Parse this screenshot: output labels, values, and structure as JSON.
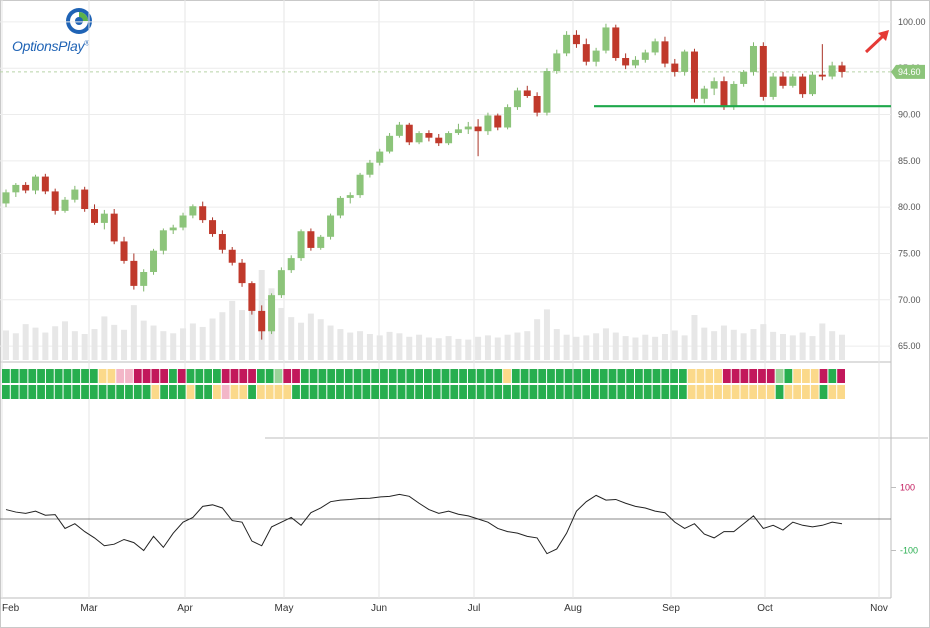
{
  "brand": {
    "name": "OptionsPlay",
    "trademark": "®"
  },
  "chart_data": [
    {
      "type": "candlestick",
      "y_axis": {
        "ticks": [
          "65.00",
          "70.00",
          "75.00",
          "80.00",
          "85.00",
          "90.00",
          "95.00",
          "100.00"
        ],
        "range": [
          63.5,
          101.5
        ],
        "side": "right"
      },
      "x_axis": {
        "labels": [
          "Feb",
          "Mar",
          "Apr",
          "May",
          "Jun",
          "Jul",
          "Aug",
          "Sep",
          "Oct",
          "Nov"
        ]
      },
      "last_price": "94.60",
      "support_level": 90.9,
      "annotation": "up-arrow",
      "candles": [
        [
          80.4,
          81.9,
          80.0,
          81.6
        ],
        [
          81.6,
          82.6,
          81.1,
          82.4
        ],
        [
          82.4,
          82.7,
          81.5,
          81.8
        ],
        [
          81.8,
          83.5,
          81.4,
          83.3
        ],
        [
          83.3,
          83.6,
          81.4,
          81.7
        ],
        [
          81.7,
          82.0,
          79.2,
          79.6
        ],
        [
          79.6,
          81.1,
          79.4,
          80.8
        ],
        [
          80.8,
          82.3,
          80.5,
          81.9
        ],
        [
          81.9,
          82.2,
          79.5,
          79.8
        ],
        [
          79.8,
          80.3,
          78.1,
          78.3
        ],
        [
          78.3,
          79.7,
          77.6,
          79.3
        ],
        [
          79.3,
          79.8,
          76.0,
          76.3
        ],
        [
          76.3,
          76.8,
          73.9,
          74.2
        ],
        [
          74.2,
          75.0,
          71.1,
          71.5
        ],
        [
          71.5,
          73.3,
          70.9,
          73.0
        ],
        [
          73.0,
          75.5,
          72.7,
          75.3
        ],
        [
          75.3,
          77.7,
          74.9,
          77.5
        ],
        [
          77.5,
          78.1,
          77.1,
          77.8
        ],
        [
          77.8,
          79.4,
          77.5,
          79.1
        ],
        [
          79.1,
          80.3,
          78.8,
          80.1
        ],
        [
          80.1,
          80.6,
          78.3,
          78.6
        ],
        [
          78.6,
          78.9,
          76.8,
          77.1
        ],
        [
          77.1,
          77.5,
          75.0,
          75.4
        ],
        [
          75.4,
          75.7,
          73.7,
          74.0
        ],
        [
          74.0,
          74.4,
          71.4,
          71.8
        ],
        [
          71.8,
          72.0,
          68.4,
          68.8
        ],
        [
          68.8,
          69.4,
          65.7,
          66.6
        ],
        [
          66.6,
          70.7,
          66.3,
          70.5
        ],
        [
          70.5,
          73.5,
          70.2,
          73.2
        ],
        [
          73.2,
          74.8,
          72.9,
          74.5
        ],
        [
          74.5,
          77.6,
          74.2,
          77.4
        ],
        [
          77.4,
          77.7,
          75.3,
          75.6
        ],
        [
          75.6,
          77.0,
          75.4,
          76.8
        ],
        [
          76.8,
          79.3,
          76.5,
          79.1
        ],
        [
          79.1,
          81.2,
          78.8,
          81.0
        ],
        [
          81.0,
          81.6,
          80.4,
          81.3
        ],
        [
          81.3,
          83.7,
          81.0,
          83.5
        ],
        [
          83.5,
          85.1,
          83.2,
          84.8
        ],
        [
          84.8,
          86.3,
          84.5,
          86.0
        ],
        [
          86.0,
          88.0,
          85.8,
          87.7
        ],
        [
          87.7,
          89.2,
          87.5,
          88.9
        ],
        [
          88.9,
          89.1,
          86.7,
          87.0
        ],
        [
          87.0,
          88.2,
          86.8,
          88.0
        ],
        [
          88.0,
          88.3,
          87.1,
          87.5
        ],
        [
          87.5,
          87.9,
          86.6,
          86.9
        ],
        [
          86.9,
          88.2,
          86.7,
          88.0
        ],
        [
          88.0,
          89.0,
          87.8,
          88.4
        ],
        [
          88.4,
          89.2,
          87.9,
          88.7
        ],
        [
          88.7,
          89.5,
          85.5,
          88.2
        ],
        [
          88.2,
          90.2,
          87.8,
          89.9
        ],
        [
          89.9,
          90.1,
          88.3,
          88.6
        ],
        [
          88.6,
          91.1,
          88.4,
          90.8
        ],
        [
          90.8,
          92.9,
          90.5,
          92.6
        ],
        [
          92.6,
          93.1,
          91.8,
          92.0
        ],
        [
          92.0,
          92.4,
          89.8,
          90.2
        ],
        [
          90.2,
          95.0,
          89.9,
          94.7
        ],
        [
          94.7,
          97.0,
          94.4,
          96.6
        ],
        [
          96.6,
          99.0,
          96.3,
          98.6
        ],
        [
          98.6,
          99.1,
          97.2,
          97.6
        ],
        [
          97.6,
          98.2,
          95.3,
          95.7
        ],
        [
          95.7,
          97.2,
          95.2,
          96.9
        ],
        [
          96.9,
          99.8,
          96.6,
          99.4
        ],
        [
          99.4,
          99.7,
          95.8,
          96.1
        ],
        [
          96.1,
          96.6,
          94.9,
          95.3
        ],
        [
          95.3,
          96.3,
          95.0,
          95.9
        ],
        [
          95.9,
          97.0,
          95.6,
          96.7
        ],
        [
          96.7,
          98.2,
          96.4,
          97.9
        ],
        [
          97.9,
          98.4,
          95.1,
          95.5
        ],
        [
          95.5,
          96.0,
          94.1,
          94.6
        ],
        [
          94.6,
          97.0,
          94.2,
          96.8
        ],
        [
          96.8,
          97.1,
          91.3,
          91.7
        ],
        [
          91.7,
          93.1,
          91.2,
          92.8
        ],
        [
          92.8,
          94.0,
          92.1,
          93.6
        ],
        [
          93.6,
          94.1,
          90.5,
          90.8
        ],
        [
          90.8,
          93.6,
          90.5,
          93.3
        ],
        [
          93.3,
          94.8,
          93.0,
          94.6
        ],
        [
          94.6,
          97.8,
          94.2,
          97.4
        ],
        [
          97.4,
          97.8,
          91.5,
          91.9
        ],
        [
          91.9,
          94.5,
          91.6,
          94.1
        ],
        [
          94.1,
          94.6,
          92.8,
          93.1
        ],
        [
          93.1,
          94.4,
          92.9,
          94.1
        ],
        [
          94.1,
          94.4,
          91.8,
          92.2
        ],
        [
          92.2,
          94.6,
          92.0,
          94.3
        ],
        [
          94.3,
          97.6,
          93.7,
          94.1
        ],
        [
          94.1,
          95.7,
          93.8,
          95.3
        ],
        [
          95.3,
          95.7,
          94.0,
          94.6
        ]
      ],
      "volume": [
        4.2,
        3.8,
        5.1,
        4.6,
        3.9,
        4.8,
        5.5,
        4.1,
        3.7,
        4.4,
        6.2,
        5.0,
        4.3,
        7.8,
        5.6,
        4.9,
        4.1,
        3.8,
        4.5,
        5.2,
        4.7,
        5.9,
        6.8,
        8.4,
        7.1,
        9.6,
        12.8,
        10.2,
        7.4,
        6.1,
        5.3,
        6.6,
        5.8,
        4.9,
        4.4,
        3.9,
        4.1,
        3.7,
        3.5,
        4.0,
        3.8,
        3.3,
        3.6,
        3.2,
        3.1,
        3.4,
        3.0,
        2.9,
        3.3,
        3.5,
        3.2,
        3.6,
        3.9,
        4.1,
        5.8,
        7.2,
        4.4,
        3.6,
        3.3,
        3.5,
        3.8,
        4.5,
        3.9,
        3.4,
        3.2,
        3.6,
        3.3,
        3.7,
        4.2,
        3.5,
        6.4,
        4.6,
        4.1,
        4.9,
        4.3,
        3.8,
        4.4,
        5.1,
        4.0,
        3.7,
        3.5,
        3.9,
        3.4,
        5.2,
        4.1,
        3.6
      ],
      "status_rows": [
        [
          "g",
          "g",
          "g",
          "g",
          "g",
          "g",
          "g",
          "g",
          "g",
          "g",
          "g",
          "y",
          "y",
          "p",
          "p",
          "m",
          "m",
          "m",
          "m",
          "g",
          "m",
          "g",
          "g",
          "g",
          "g",
          "m",
          "m",
          "m",
          "m",
          "g",
          "g",
          "l",
          "m",
          "m",
          "g",
          "g",
          "g",
          "g",
          "g",
          "g",
          "g",
          "g",
          "g",
          "g",
          "g",
          "g",
          "g",
          "g",
          "g",
          "g",
          "g",
          "g",
          "g",
          "g",
          "g",
          "g",
          "g",
          "y",
          "g",
          "g",
          "g",
          "g",
          "g",
          "g",
          "g",
          "g",
          "g",
          "g",
          "g",
          "g",
          "g",
          "g",
          "g",
          "g",
          "g",
          "g",
          "g",
          "g",
          "y",
          "y",
          "y",
          "y",
          "m",
          "m",
          "m",
          "m",
          "m",
          "m",
          "l",
          "g",
          "y",
          "y",
          "y",
          "m",
          "g",
          "m"
        ],
        [
          "g",
          "g",
          "g",
          "g",
          "g",
          "g",
          "g",
          "g",
          "g",
          "g",
          "g",
          "g",
          "g",
          "g",
          "g",
          "g",
          "g",
          "y",
          "g",
          "g",
          "g",
          "y",
          "g",
          "g",
          "y",
          "p",
          "y",
          "y",
          "g",
          "y",
          "y",
          "y",
          "y",
          "g",
          "g",
          "g",
          "g",
          "g",
          "g",
          "g",
          "g",
          "g",
          "g",
          "g",
          "g",
          "g",
          "g",
          "g",
          "g",
          "g",
          "g",
          "g",
          "g",
          "g",
          "g",
          "g",
          "g",
          "g",
          "g",
          "g",
          "g",
          "g",
          "g",
          "g",
          "g",
          "g",
          "g",
          "g",
          "g",
          "g",
          "g",
          "g",
          "g",
          "g",
          "g",
          "g",
          "g",
          "g",
          "y",
          "y",
          "y",
          "y",
          "y",
          "y",
          "y",
          "y",
          "y",
          "y",
          "g",
          "y",
          "y",
          "y",
          "y",
          "g",
          "y",
          "y"
        ]
      ]
    },
    {
      "type": "line",
      "name": "oscillator",
      "y_axis": {
        "ticks": [
          "100",
          "-100"
        ],
        "upper": 100,
        "lower": -100
      },
      "values": [
        30,
        22,
        18,
        25,
        12,
        14,
        -30,
        -15,
        -40,
        -60,
        -85,
        -80,
        -65,
        -75,
        -100,
        -55,
        -90,
        -45,
        -10,
        5,
        40,
        45,
        35,
        -5,
        -10,
        -70,
        -85,
        -25,
        -10,
        5,
        -20,
        20,
        35,
        55,
        60,
        62,
        65,
        66,
        70,
        72,
        78,
        72,
        50,
        30,
        18,
        25,
        15,
        10,
        0,
        -10,
        -30,
        -40,
        -45,
        -55,
        -60,
        -110,
        -95,
        -45,
        25,
        55,
        75,
        60,
        62,
        50,
        40,
        35,
        25,
        20,
        -10,
        -30,
        -15,
        -48,
        -60,
        -40,
        -40,
        -15,
        10,
        -30,
        -20,
        -35,
        -10,
        -20,
        -25,
        -20,
        -10,
        -15
      ]
    }
  ]
}
